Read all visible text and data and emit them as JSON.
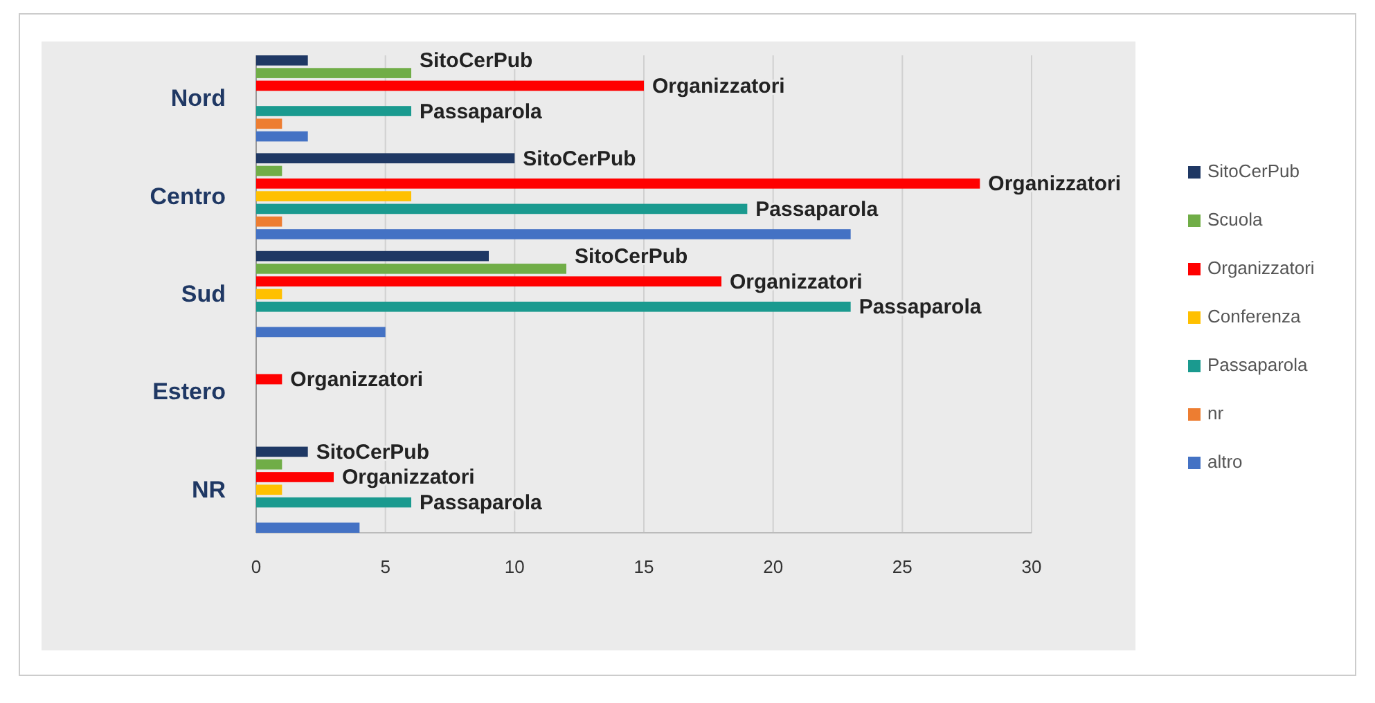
{
  "chart_data": {
    "type": "bar",
    "orientation": "horizontal",
    "categories": [
      "Nord",
      "Centro",
      "Sud",
      "Estero",
      "NR"
    ],
    "series": [
      {
        "name": "SitoCerPub",
        "color": "#1f3864",
        "values": [
          2,
          10,
          9,
          null,
          2
        ]
      },
      {
        "name": "Scuola",
        "color": "#70ad47",
        "values": [
          6,
          1,
          12,
          null,
          1
        ]
      },
      {
        "name": "Organizzatori",
        "color": "#ff0000",
        "values": [
          15,
          28,
          18,
          1,
          3
        ]
      },
      {
        "name": "Conferenza",
        "color": "#ffc000",
        "values": [
          null,
          6,
          1,
          null,
          1
        ]
      },
      {
        "name": "Passaparola",
        "color": "#1a9a8f",
        "values": [
          6,
          19,
          23,
          null,
          6
        ]
      },
      {
        "name": "nr",
        "color": "#ed7d31",
        "values": [
          1,
          1,
          null,
          null,
          null
        ]
      },
      {
        "name": "altro",
        "color": "#4472c4",
        "values": [
          2,
          23,
          5,
          null,
          4
        ]
      }
    ],
    "xlim": [
      0,
      30
    ],
    "xticks": [
      0,
      5,
      10,
      15,
      20,
      25,
      30
    ],
    "grid": "x",
    "legend": "right",
    "annotations": [
      "SitoCerPub",
      "Organizzatori",
      "Passaparola",
      "SitoCerPub",
      "Organizzatori",
      "Passaparola",
      "SitoCerPub",
      "Organizzatori",
      "Passaparola",
      "Organizzatori",
      "SitoCerPub",
      "Organizzatori",
      "Passaparola"
    ]
  }
}
